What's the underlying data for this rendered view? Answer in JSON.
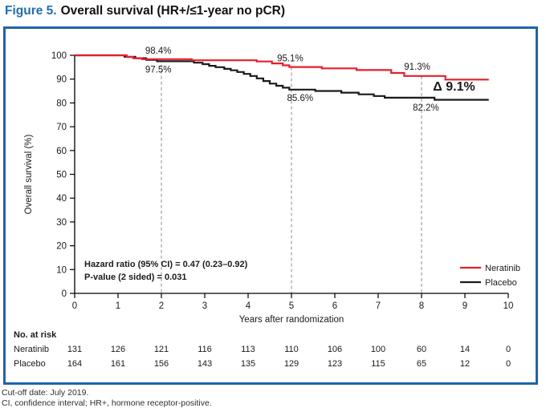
{
  "header": {
    "figure_label": "Figure 5.",
    "title": "Overall survival (HR+/≤1-year no pCR)"
  },
  "colors": {
    "accent_blue": "#1f6cb8",
    "panel_border_blue": "#1d64ad",
    "neratinib_red": "#e4202c",
    "placebo_black": "#1a1a1a",
    "dashed_gray": "#8c8c8c"
  },
  "chart_data": {
    "type": "line",
    "subtype": "kaplan-meier-step",
    "title": "",
    "xlabel": "Years after randomization",
    "ylabel": "Overall survival (%)",
    "xlim": [
      0,
      10
    ],
    "ylim": [
      0,
      100
    ],
    "xticks": [
      0,
      1,
      2,
      3,
      4,
      5,
      6,
      7,
      8,
      9,
      10
    ],
    "yticks": [
      0,
      10,
      20,
      30,
      40,
      50,
      60,
      70,
      80,
      90,
      100
    ],
    "grid": false,
    "dashed_reference_years": [
      2,
      5,
      8
    ],
    "series": [
      {
        "name": "Neratinib",
        "color": "#e4202c",
        "end_x": 9.55,
        "steps": [
          [
            0,
            100
          ],
          [
            1.2,
            99.3
          ],
          [
            1.35,
            98.8
          ],
          [
            1.55,
            98.4
          ],
          [
            2.7,
            97.9
          ],
          [
            4.2,
            97.4
          ],
          [
            4.55,
            96.6
          ],
          [
            4.8,
            95.8
          ],
          [
            4.95,
            95.1
          ],
          [
            5.7,
            94.5
          ],
          [
            6.5,
            93.8
          ],
          [
            7.3,
            92.6
          ],
          [
            7.6,
            91.3
          ],
          [
            8.55,
            89.8
          ]
        ]
      },
      {
        "name": "Placebo",
        "color": "#1a1a1a",
        "end_x": 9.55,
        "steps": [
          [
            0,
            100
          ],
          [
            1.15,
            99.4
          ],
          [
            1.4,
            98.8
          ],
          [
            1.65,
            98.1
          ],
          [
            1.9,
            97.5
          ],
          [
            2.75,
            96.9
          ],
          [
            2.95,
            96.3
          ],
          [
            3.1,
            95.6
          ],
          [
            3.25,
            95.0
          ],
          [
            3.45,
            94.3
          ],
          [
            3.6,
            93.7
          ],
          [
            3.75,
            93.0
          ],
          [
            3.9,
            92.2
          ],
          [
            4.05,
            91.3
          ],
          [
            4.2,
            90.3
          ],
          [
            4.35,
            89.2
          ],
          [
            4.5,
            88.1
          ],
          [
            4.65,
            87.2
          ],
          [
            4.8,
            86.4
          ],
          [
            4.95,
            85.6
          ],
          [
            5.55,
            85.0
          ],
          [
            6.15,
            84.3
          ],
          [
            6.55,
            83.6
          ],
          [
            6.9,
            82.9
          ],
          [
            7.15,
            82.2
          ],
          [
            8.3,
            81.3
          ]
        ]
      }
    ],
    "landmark_estimates": {
      "year_2": {
        "Neratinib": "98.4%",
        "Placebo": "97.5%"
      },
      "year_5": {
        "Neratinib": "95.1%",
        "Placebo": "85.6%"
      },
      "year_8": {
        "Neratinib": "91.3%",
        "Placebo": "82.2%"
      },
      "difference_at_year_8": "Δ 9.1%"
    },
    "annotations": [
      {
        "text": "98.4%",
        "x_years": 1.93,
        "y_pct": 98.4,
        "dy": -7
      },
      {
        "text": "97.5%",
        "x_years": 1.93,
        "y_pct": 97.5,
        "dy": 14
      },
      {
        "text": "95.1%",
        "x_years": 4.97,
        "y_pct": 95.1,
        "dy": -7
      },
      {
        "text": "85.6%",
        "x_years": 5.2,
        "y_pct": 85.6,
        "dy": 14
      },
      {
        "text": "91.3%",
        "x_years": 7.9,
        "y_pct": 91.3,
        "dy": -8
      },
      {
        "text": "82.2%",
        "x_years": 8.1,
        "y_pct": 82.2,
        "dy": 16
      },
      {
        "text": "Δ 9.1%",
        "x_years": 8.75,
        "y_pct": 86.5,
        "dy": 4,
        "bold": true,
        "size": 16
      }
    ],
    "stats_box": [
      "Hazard ratio (95% CI) = 0.47 (0.23–0.92)",
      "P-value (2 sided) = 0.031"
    ],
    "legend": {
      "position": "lower-right",
      "entries": [
        {
          "label": "Neratinib",
          "color": "#e4202c"
        },
        {
          "label": "Placebo",
          "color": "#1a1a1a"
        }
      ]
    },
    "risk_table": {
      "title": "No. at risk",
      "time_points": [
        0,
        1,
        2,
        3,
        4,
        5,
        6,
        7,
        8,
        9,
        10
      ],
      "rows": [
        {
          "label": "Neratinib",
          "counts": [
            131,
            126,
            121,
            116,
            113,
            110,
            106,
            100,
            60,
            14,
            0
          ]
        },
        {
          "label": "Placebo",
          "counts": [
            164,
            161,
            156,
            143,
            135,
            129,
            123,
            115,
            65,
            12,
            0
          ]
        }
      ]
    }
  },
  "footer": {
    "line1": "Cut-off date: July 2019.",
    "line2": "CI, confidence interval; HR+, hormone receptor-positive."
  }
}
